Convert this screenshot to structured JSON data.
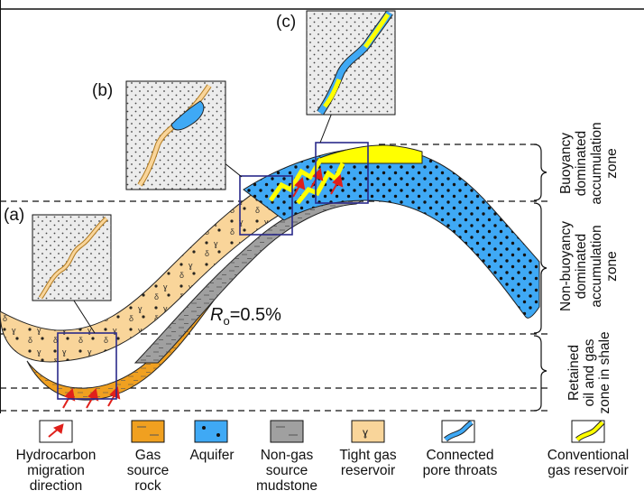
{
  "panel_labels": {
    "a": "(a)",
    "b": "(b)",
    "c": "(c)"
  },
  "ro_label": {
    "symbol": "R",
    "subscript": "o",
    "value": "=0.5%"
  },
  "zones": [
    {
      "lines": [
        "Buoyancy",
        "dominated",
        "accumulation",
        "zone"
      ]
    },
    {
      "lines": [
        "Non-buoyancy",
        "dominated",
        "accumulation",
        "zone"
      ]
    },
    {
      "lines": [
        "Retained",
        "oil and gas",
        "zone in shale"
      ]
    }
  ],
  "legend": [
    {
      "icon": "hydrocarbon-migration-arrow-icon",
      "lines": [
        "Hydrocarbon",
        "migration",
        "direction"
      ]
    },
    {
      "icon": "gas-source-rock-swatch",
      "lines": [
        "Gas",
        "source",
        "rock"
      ]
    },
    {
      "icon": "aquifer-swatch",
      "lines": [
        "Aquifer"
      ]
    },
    {
      "icon": "non-gas-source-mudstone-swatch",
      "lines": [
        "Non-gas",
        "source",
        "mudstone"
      ]
    },
    {
      "icon": "tight-gas-reservoir-swatch",
      "lines": [
        "Tight gas",
        "reservoir"
      ]
    },
    {
      "icon": "connected-pore-throats-swatch",
      "lines": [
        "Connected",
        "pore throats"
      ]
    },
    {
      "icon": "conventional-gas-reservoir-swatch",
      "lines": [
        "Conventional",
        "gas reservoir"
      ]
    }
  ],
  "colors": {
    "tight_gas": "#f9d59a",
    "gas_source": "#f0a020",
    "aquifer": "#3fa9f5",
    "mudstone": "#a0a0a0",
    "conventional_gas": "#ffff00",
    "frame": "#2a2a8a",
    "arrow": "#e0201b",
    "inset_bg": "#ececec"
  }
}
